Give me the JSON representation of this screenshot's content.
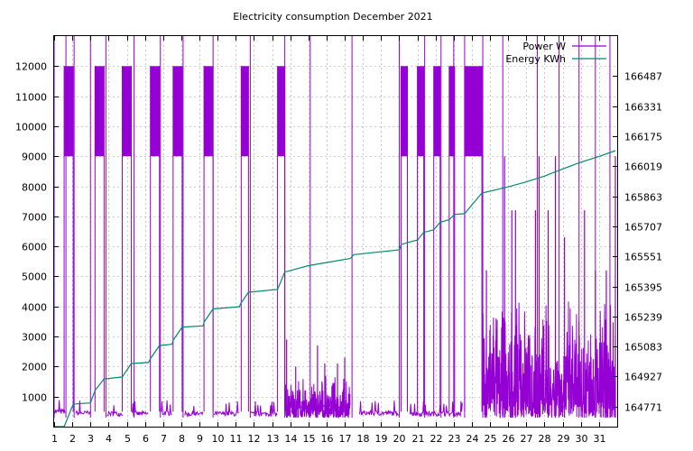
{
  "chart_data": {
    "type": "line",
    "title": "Electricity consumption December 2021",
    "xlim": [
      1,
      32
    ],
    "ylim": [
      0,
      13000
    ],
    "y2lim": [
      164667,
      166695
    ],
    "grid": true,
    "legend_placement": "top-right",
    "x_ticks": [
      1,
      2,
      3,
      4,
      5,
      6,
      7,
      8,
      9,
      10,
      11,
      12,
      13,
      14,
      15,
      16,
      17,
      18,
      19,
      20,
      21,
      22,
      23,
      24,
      25,
      26,
      27,
      28,
      29,
      30,
      31
    ],
    "y_ticks": [
      1000,
      2000,
      3000,
      4000,
      5000,
      6000,
      7000,
      8000,
      9000,
      10000,
      11000,
      12000
    ],
    "y2_ticks": [
      164771,
      164927,
      165083,
      165239,
      165395,
      165551,
      165707,
      165863,
      166019,
      166175,
      166331,
      166487
    ],
    "series": [
      {
        "name": "Power W",
        "axis": "y",
        "color": "#9400d3",
        "baseline_periods": [
          {
            "from": 1.0,
            "to": 1.6,
            "level": 500
          },
          {
            "from": 2.2,
            "to": 3.0,
            "level": 450
          },
          {
            "from": 3.9,
            "to": 4.8,
            "level": 430
          },
          {
            "from": 5.3,
            "to": 6.2,
            "level": 430
          },
          {
            "from": 6.9,
            "to": 7.5,
            "level": 450
          },
          {
            "from": 8.2,
            "to": 9.2,
            "level": 420
          },
          {
            "from": 9.8,
            "to": 11.2,
            "level": 430
          },
          {
            "from": 11.8,
            "to": 13.3,
            "level": 420
          },
          {
            "from": 13.9,
            "to": 17.3,
            "level": 650
          },
          {
            "from": 17.8,
            "to": 20.0,
            "level": 450
          },
          {
            "from": 20.6,
            "to": 23.5,
            "level": 430
          }
        ],
        "heater_blocks": [
          {
            "from": 1.55,
            "to": 2.05,
            "low": 9000,
            "high": 12000
          },
          {
            "from": 3.25,
            "to": 3.75,
            "low": 9000,
            "high": 12000
          },
          {
            "from": 4.75,
            "to": 5.25,
            "low": 9000,
            "high": 12000
          },
          {
            "from": 6.3,
            "to": 6.8,
            "low": 9000,
            "high": 12000
          },
          {
            "from": 7.55,
            "to": 8.05,
            "low": 9000,
            "high": 12000
          },
          {
            "from": 9.25,
            "to": 9.75,
            "low": 9000,
            "high": 12000
          },
          {
            "from": 11.3,
            "to": 11.7,
            "low": 9000,
            "high": 12000
          },
          {
            "from": 13.3,
            "to": 13.7,
            "low": 9000,
            "high": 12000
          },
          {
            "from": 20.1,
            "to": 20.45,
            "low": 9000,
            "high": 12000
          },
          {
            "from": 21.0,
            "to": 21.35,
            "low": 9000,
            "high": 12000
          },
          {
            "from": 21.9,
            "to": 22.25,
            "low": 9000,
            "high": 12000
          },
          {
            "from": 22.75,
            "to": 23.05,
            "low": 9000,
            "high": 12000
          },
          {
            "from": 23.6,
            "to": 24.55,
            "low": 9000,
            "high": 12000
          }
        ],
        "spikes": [
          {
            "x": 1.0,
            "value": 13000
          },
          {
            "x": 1.65,
            "value": 13000
          },
          {
            "x": 2.1,
            "value": 13000
          },
          {
            "x": 3.0,
            "value": 13000
          },
          {
            "x": 3.85,
            "value": 13000
          },
          {
            "x": 5.4,
            "value": 13000
          },
          {
            "x": 6.85,
            "value": 13000
          },
          {
            "x": 8.1,
            "value": 13000
          },
          {
            "x": 9.75,
            "value": 13000
          },
          {
            "x": 11.8,
            "value": 13000
          },
          {
            "x": 13.7,
            "value": 13000
          },
          {
            "x": 15.1,
            "value": 13000
          },
          {
            "x": 17.4,
            "value": 13000
          },
          {
            "x": 20.0,
            "value": 13000
          },
          {
            "x": 21.4,
            "value": 13000
          },
          {
            "x": 22.3,
            "value": 13000
          },
          {
            "x": 23.0,
            "value": 13000
          },
          {
            "x": 23.6,
            "value": 13000
          },
          {
            "x": 24.6,
            "value": 13000
          },
          {
            "x": 25.7,
            "value": 13000
          },
          {
            "x": 27.6,
            "value": 13000
          },
          {
            "x": 28.8,
            "value": 13000
          },
          {
            "x": 29.9,
            "value": 13000
          },
          {
            "x": 30.8,
            "value": 13000
          },
          {
            "x": 31.6,
            "value": 13000
          }
        ],
        "noisy_periods": [
          {
            "from": 13.7,
            "to": 17.3,
            "low": 300,
            "high": 1700,
            "peaks": [
              {
                "x": 13.8,
                "value": 2900
              },
              {
                "x": 14.3,
                "value": 2000
              },
              {
                "x": 15.5,
                "value": 2700
              },
              {
                "x": 15.9,
                "value": 2100
              },
              {
                "x": 16.6,
                "value": 2100
              },
              {
                "x": 17.0,
                "value": 2300
              }
            ]
          },
          {
            "from": 24.6,
            "to": 31.9,
            "low": 300,
            "high": 4500,
            "peaks": [
              {
                "x": 24.8,
                "value": 5200
              },
              {
                "x": 25.8,
                "value": 9000
              },
              {
                "x": 26.2,
                "value": 7200
              },
              {
                "x": 26.4,
                "value": 7200
              },
              {
                "x": 27.5,
                "value": 7200
              },
              {
                "x": 27.7,
                "value": 9000
              },
              {
                "x": 28.2,
                "value": 7200
              },
              {
                "x": 28.6,
                "value": 9000
              },
              {
                "x": 29.1,
                "value": 6300
              },
              {
                "x": 30.2,
                "value": 7200
              },
              {
                "x": 30.8,
                "value": 5200
              },
              {
                "x": 31.4,
                "value": 5200
              },
              {
                "x": 31.9,
                "value": 9000
              }
            ]
          }
        ]
      },
      {
        "name": "Energy KWh",
        "axis": "y2",
        "color": "#008b6b",
        "x": [
          1.0,
          1.55,
          2.05,
          2.2,
          3.0,
          3.25,
          3.75,
          4.0,
          4.75,
          5.25,
          6.2,
          6.3,
          6.8,
          7.5,
          7.55,
          8.05,
          9.2,
          9.25,
          9.75,
          11.2,
          11.3,
          11.7,
          13.3,
          13.7,
          15.0,
          17.3,
          17.5,
          20.0,
          20.1,
          20.45,
          21.0,
          21.35,
          21.9,
          22.25,
          22.75,
          23.05,
          23.6,
          24.55,
          25.0,
          26.0,
          27.0,
          28.0,
          29.0,
          30.0,
          31.0,
          31.9
        ],
        "values": [
          164667,
          164667,
          164783,
          164785,
          164790,
          164855,
          164915,
          164917,
          164925,
          164995,
          165000,
          165020,
          165088,
          165095,
          165115,
          165184,
          165190,
          165210,
          165278,
          165290,
          165310,
          165365,
          165380,
          165470,
          165503,
          165540,
          165560,
          165585,
          165612,
          165623,
          165636,
          165676,
          165689,
          165728,
          165742,
          165769,
          165773,
          165880,
          165890,
          165912,
          165938,
          165968,
          166005,
          166040,
          166070,
          166100
        ]
      }
    ]
  }
}
